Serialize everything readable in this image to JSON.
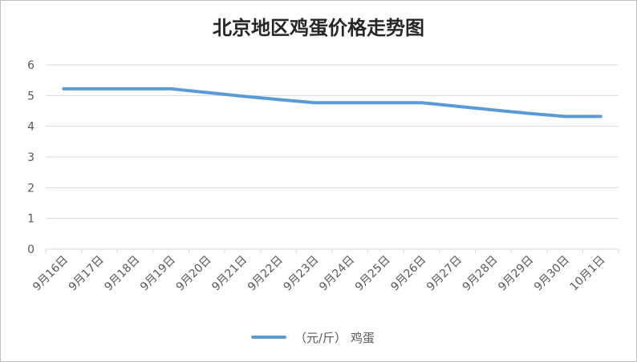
{
  "chart_data": {
    "type": "line",
    "title": "北京地区鸡蛋价格走势图",
    "categories": [
      "9月16日",
      "9月17日",
      "9月18日",
      "9月19日",
      "9月20日",
      "9月21日",
      "9月22日",
      "9月23日",
      "9月24日",
      "9月25日",
      "9月26日",
      "9月27日",
      "9月28日",
      "9月29日",
      "9月30日",
      "10月1日"
    ],
    "series": [
      {
        "name": "（元/斤） 鸡蛋",
        "values": [
          5.22,
          5.22,
          5.22,
          5.22,
          5.1,
          4.98,
          4.87,
          4.77,
          4.77,
          4.77,
          4.77,
          4.65,
          4.53,
          4.42,
          4.32,
          4.32
        ],
        "color": "#5b9bd5"
      }
    ],
    "ylim": [
      0,
      6
    ],
    "yticks": [
      "0",
      "1",
      "2",
      "3",
      "4",
      "5",
      "6"
    ],
    "xlabel": "",
    "ylabel": "",
    "grid": true,
    "gridColor": "#d9d9d9",
    "legend_position": "bottom"
  }
}
